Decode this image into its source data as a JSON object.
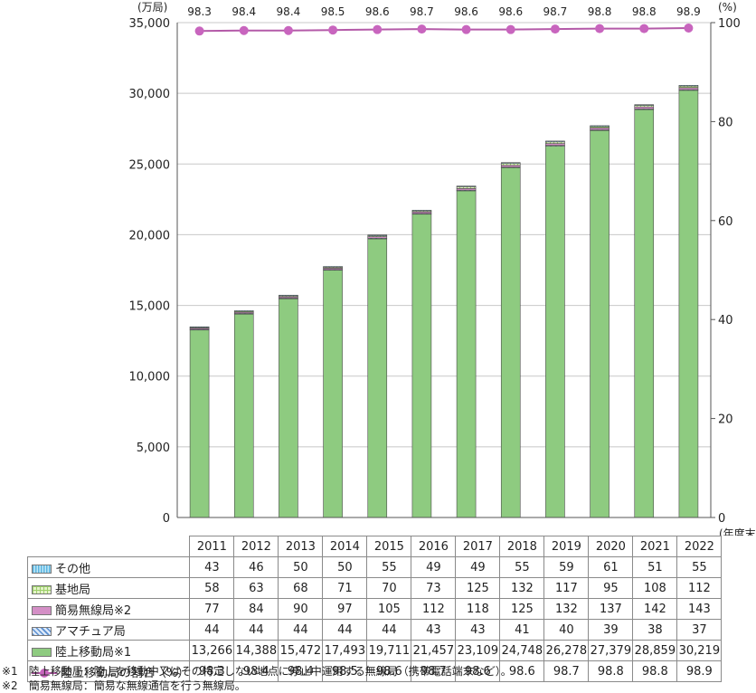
{
  "chart_data": {
    "type": "bar",
    "stacked": true,
    "categories": [
      "2011",
      "2012",
      "2013",
      "2014",
      "2015",
      "2016",
      "2017",
      "2018",
      "2019",
      "2020",
      "2021",
      "2022"
    ],
    "series": [
      {
        "name": "陸上移動局※1",
        "color": "#8ecb80",
        "values": [
          13266,
          14388,
          15472,
          17493,
          19711,
          21457,
          23109,
          24748,
          26278,
          27379,
          28859,
          30219
        ],
        "labels": [
          "13,266",
          "14,388",
          "15,472",
          "17,493",
          "19,711",
          "21,457",
          "23,109",
          "24,748",
          "26,278",
          "27,379",
          "28,859",
          "30,219"
        ]
      },
      {
        "name": "アマチュア局",
        "color": "#7ea6d8",
        "values": [
          44,
          44,
          44,
          44,
          44,
          43,
          43,
          41,
          40,
          39,
          38,
          37
        ],
        "labels": [
          "44",
          "44",
          "44",
          "44",
          "44",
          "43",
          "43",
          "41",
          "40",
          "39",
          "38",
          "37"
        ]
      },
      {
        "name": "簡易無線局※2",
        "color": "#d48fc6",
        "values": [
          77,
          84,
          90,
          97,
          105,
          112,
          118,
          125,
          132,
          137,
          142,
          143
        ],
        "labels": [
          "77",
          "84",
          "90",
          "97",
          "105",
          "112",
          "118",
          "125",
          "132",
          "137",
          "142",
          "143"
        ]
      },
      {
        "name": "基地局",
        "color": "#bfe0a0",
        "values": [
          58,
          63,
          68,
          71,
          70,
          73,
          125,
          132,
          117,
          95,
          108,
          112
        ],
        "labels": [
          "58",
          "63",
          "68",
          "71",
          "70",
          "73",
          "125",
          "132",
          "117",
          "95",
          "108",
          "112"
        ]
      },
      {
        "name": "その他",
        "color": "#9fd6f0",
        "values": [
          43,
          46,
          50,
          50,
          55,
          49,
          49,
          55,
          59,
          61,
          51,
          55
        ],
        "labels": [
          "43",
          "46",
          "50",
          "50",
          "55",
          "49",
          "49",
          "55",
          "59",
          "61",
          "51",
          "55"
        ]
      }
    ],
    "line_series": {
      "name": "陸上移動局の割合（%）",
      "color": "#c865be",
      "values": [
        98.3,
        98.4,
        98.4,
        98.5,
        98.6,
        98.7,
        98.6,
        98.6,
        98.7,
        98.8,
        98.8,
        98.9
      ],
      "labels": [
        "98.3",
        "98.4",
        "98.4",
        "98.5",
        "98.6",
        "98.7",
        "98.6",
        "98.6",
        "98.7",
        "98.8",
        "98.8",
        "98.9"
      ]
    },
    "left_axis": {
      "unit": "(万局)",
      "min": 0,
      "max": 35000,
      "ticks": [
        0,
        5000,
        10000,
        15000,
        20000,
        25000,
        30000,
        35000
      ],
      "tick_labels": [
        "0",
        "5,000",
        "10,000",
        "15,000",
        "20,000",
        "25,000",
        "30,000",
        "35,000"
      ]
    },
    "right_axis": {
      "unit": "(%)",
      "min": 0,
      "max": 100,
      "ticks": [
        0,
        20,
        40,
        60,
        80,
        100
      ],
      "tick_labels": [
        "0",
        "20",
        "40",
        "60",
        "80",
        "100"
      ]
    },
    "x_unit": "(年度末)",
    "grid": true
  },
  "table_rows": [
    "その他",
    "基地局",
    "簡易無線局※2",
    "アマチュア局",
    "陸上移動局※1"
  ],
  "notes": [
    "※1　陸上移動局：陸上を移動中又はその特定しない地点に停止中運用する無線局（携帯電話端末など）。",
    "※2　簡易無線局：簡易な無線通信を行う無線局。"
  ]
}
